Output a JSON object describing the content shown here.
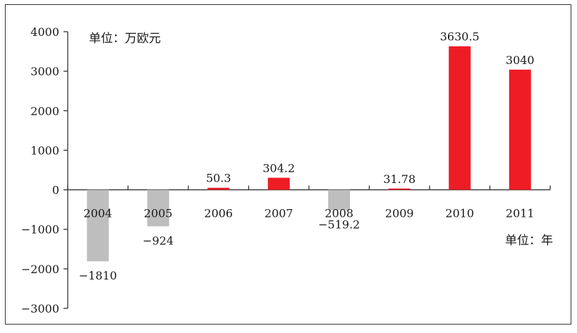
{
  "chart_data": {
    "type": "bar",
    "categories": [
      "2004",
      "2005",
      "2006",
      "2007",
      "2008",
      "2009",
      "2010",
      "2011"
    ],
    "values": [
      -1810,
      -924,
      50.3,
      304.2,
      -519.2,
      31.78,
      3630.5,
      3040
    ],
    "value_labels": [
      "−1810",
      "−924",
      "50.3",
      "304.2",
      "−519.2",
      "31.78",
      "3630.5",
      "3040"
    ],
    "y_ticks": [
      4000,
      3000,
      2000,
      1000,
      0,
      -1000,
      -2000,
      -3000
    ],
    "y_tick_labels": [
      "4000",
      "3000",
      "2000",
      "1000",
      "0",
      "−1000",
      "−2000",
      "−3000"
    ],
    "ylim": [
      -3000,
      4000
    ],
    "y_unit_label": "单位：万欧元",
    "x_unit_label": "单位：年",
    "grid": false,
    "colors": {
      "positive": "#ee1c25",
      "negative": "#bfbebe"
    }
  }
}
